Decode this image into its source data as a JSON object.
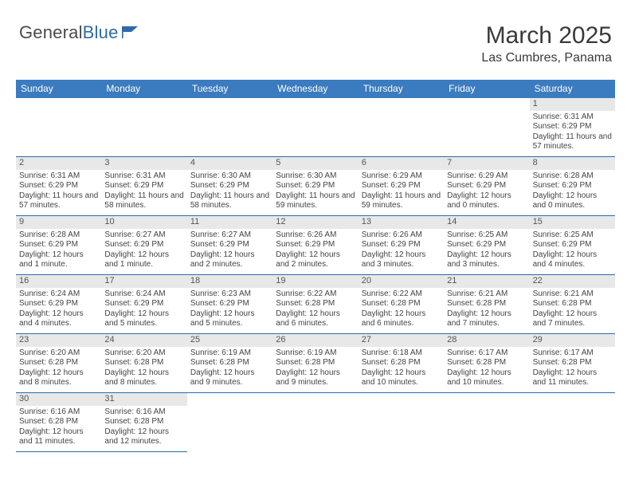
{
  "logo": {
    "general": "General",
    "blue": "Blue"
  },
  "title": "March 2025",
  "subtitle": "Las Cumbres, Panama",
  "accent_color": "#3b7bbf",
  "border_color": "#2e6aa8",
  "daynum_bg": "#e8e8e8",
  "text_color": "#444444",
  "weekdays": [
    "Sunday",
    "Monday",
    "Tuesday",
    "Wednesday",
    "Thursday",
    "Friday",
    "Saturday"
  ],
  "leading_blanks": 6,
  "days": [
    {
      "n": 1,
      "sunrise": "6:31 AM",
      "sunset": "6:29 PM",
      "daylight": "11 hours and 57 minutes."
    },
    {
      "n": 2,
      "sunrise": "6:31 AM",
      "sunset": "6:29 PM",
      "daylight": "11 hours and 57 minutes."
    },
    {
      "n": 3,
      "sunrise": "6:31 AM",
      "sunset": "6:29 PM",
      "daylight": "11 hours and 58 minutes."
    },
    {
      "n": 4,
      "sunrise": "6:30 AM",
      "sunset": "6:29 PM",
      "daylight": "11 hours and 58 minutes."
    },
    {
      "n": 5,
      "sunrise": "6:30 AM",
      "sunset": "6:29 PM",
      "daylight": "11 hours and 59 minutes."
    },
    {
      "n": 6,
      "sunrise": "6:29 AM",
      "sunset": "6:29 PM",
      "daylight": "11 hours and 59 minutes."
    },
    {
      "n": 7,
      "sunrise": "6:29 AM",
      "sunset": "6:29 PM",
      "daylight": "12 hours and 0 minutes."
    },
    {
      "n": 8,
      "sunrise": "6:28 AM",
      "sunset": "6:29 PM",
      "daylight": "12 hours and 0 minutes."
    },
    {
      "n": 9,
      "sunrise": "6:28 AM",
      "sunset": "6:29 PM",
      "daylight": "12 hours and 1 minute."
    },
    {
      "n": 10,
      "sunrise": "6:27 AM",
      "sunset": "6:29 PM",
      "daylight": "12 hours and 1 minute."
    },
    {
      "n": 11,
      "sunrise": "6:27 AM",
      "sunset": "6:29 PM",
      "daylight": "12 hours and 2 minutes."
    },
    {
      "n": 12,
      "sunrise": "6:26 AM",
      "sunset": "6:29 PM",
      "daylight": "12 hours and 2 minutes."
    },
    {
      "n": 13,
      "sunrise": "6:26 AM",
      "sunset": "6:29 PM",
      "daylight": "12 hours and 3 minutes."
    },
    {
      "n": 14,
      "sunrise": "6:25 AM",
      "sunset": "6:29 PM",
      "daylight": "12 hours and 3 minutes."
    },
    {
      "n": 15,
      "sunrise": "6:25 AM",
      "sunset": "6:29 PM",
      "daylight": "12 hours and 4 minutes."
    },
    {
      "n": 16,
      "sunrise": "6:24 AM",
      "sunset": "6:29 PM",
      "daylight": "12 hours and 4 minutes."
    },
    {
      "n": 17,
      "sunrise": "6:24 AM",
      "sunset": "6:29 PM",
      "daylight": "12 hours and 5 minutes."
    },
    {
      "n": 18,
      "sunrise": "6:23 AM",
      "sunset": "6:29 PM",
      "daylight": "12 hours and 5 minutes."
    },
    {
      "n": 19,
      "sunrise": "6:22 AM",
      "sunset": "6:28 PM",
      "daylight": "12 hours and 6 minutes."
    },
    {
      "n": 20,
      "sunrise": "6:22 AM",
      "sunset": "6:28 PM",
      "daylight": "12 hours and 6 minutes."
    },
    {
      "n": 21,
      "sunrise": "6:21 AM",
      "sunset": "6:28 PM",
      "daylight": "12 hours and 7 minutes."
    },
    {
      "n": 22,
      "sunrise": "6:21 AM",
      "sunset": "6:28 PM",
      "daylight": "12 hours and 7 minutes."
    },
    {
      "n": 23,
      "sunrise": "6:20 AM",
      "sunset": "6:28 PM",
      "daylight": "12 hours and 8 minutes."
    },
    {
      "n": 24,
      "sunrise": "6:20 AM",
      "sunset": "6:28 PM",
      "daylight": "12 hours and 8 minutes."
    },
    {
      "n": 25,
      "sunrise": "6:19 AM",
      "sunset": "6:28 PM",
      "daylight": "12 hours and 9 minutes."
    },
    {
      "n": 26,
      "sunrise": "6:19 AM",
      "sunset": "6:28 PM",
      "daylight": "12 hours and 9 minutes."
    },
    {
      "n": 27,
      "sunrise": "6:18 AM",
      "sunset": "6:28 PM",
      "daylight": "12 hours and 10 minutes."
    },
    {
      "n": 28,
      "sunrise": "6:17 AM",
      "sunset": "6:28 PM",
      "daylight": "12 hours and 10 minutes."
    },
    {
      "n": 29,
      "sunrise": "6:17 AM",
      "sunset": "6:28 PM",
      "daylight": "12 hours and 11 minutes."
    },
    {
      "n": 30,
      "sunrise": "6:16 AM",
      "sunset": "6:28 PM",
      "daylight": "12 hours and 11 minutes."
    },
    {
      "n": 31,
      "sunrise": "6:16 AM",
      "sunset": "6:28 PM",
      "daylight": "12 hours and 12 minutes."
    }
  ],
  "labels": {
    "sunrise": "Sunrise: ",
    "sunset": "Sunset: ",
    "daylight": "Daylight: "
  }
}
